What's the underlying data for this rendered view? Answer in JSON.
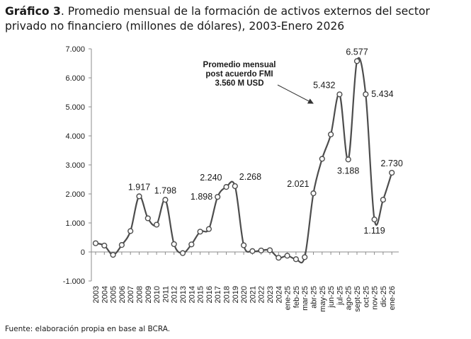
{
  "header": {
    "title_bold": "Gráfico 3",
    "title_rest": ". Promedio mensual de la formación de activos externos del sector privado no financiero (millones de dólares), 2003-Enero 2026"
  },
  "footer": {
    "source": "Fuente: elaboración propia en base al BCRA."
  },
  "colors": {
    "line": "#4d4d4d",
    "marker_fill": "#ffffff",
    "axis": "#8c8c8c"
  },
  "chart_data": {
    "type": "line",
    "title": "Promedio mensual de la formación de activos externos del sector privado no financiero (millones de dólares), 2003-Enero 2026",
    "xlabel": "",
    "ylabel": "",
    "ylim": [
      -1000,
      7000
    ],
    "yticks": [
      7000,
      6000,
      5000,
      4000,
      3000,
      2000,
      1000,
      0,
      -1000
    ],
    "ytick_labels": [
      "7.000",
      "6.000",
      "5.000",
      "4.000",
      "3.000",
      "2.000",
      "1.000",
      "0",
      "-1.000"
    ],
    "grid": false,
    "categories": [
      "2003",
      "2004",
      "2005",
      "2006",
      "2007",
      "2008",
      "2009",
      "2010",
      "2011",
      "2012",
      "2013",
      "2014",
      "2015",
      "2016",
      "2017",
      "2018",
      "2019",
      "2020",
      "2021",
      "2022",
      "2023",
      "2024",
      "ene-25",
      "feb-25",
      "mar-25",
      "abr-25",
      "may-25",
      "jun-25",
      "jul-25",
      "ago-25",
      "sept-25",
      "oct-25",
      "nov-25",
      "dic-25",
      "ene-26"
    ],
    "values": [
      300,
      220,
      -100,
      240,
      720,
      1917,
      1160,
      940,
      1798,
      270,
      -40,
      260,
      700,
      790,
      1898,
      2240,
      2268,
      230,
      30,
      50,
      60,
      -200,
      -130,
      -250,
      -180,
      2021,
      3210,
      4050,
      5432,
      3188,
      6577,
      5434,
      1119,
      1800,
      2730
    ],
    "data_labels": [
      {
        "index": 5,
        "text": "1.917",
        "pos": "above"
      },
      {
        "index": 8,
        "text": "1.798",
        "pos": "above"
      },
      {
        "index": 14,
        "text": "1.898",
        "pos": "left"
      },
      {
        "index": 15,
        "text": "2.240",
        "pos": "above-left"
      },
      {
        "index": 16,
        "text": "2.268",
        "pos": "above-right"
      },
      {
        "index": 25,
        "text": "2.021",
        "pos": "above-left"
      },
      {
        "index": 28,
        "text": "5.432",
        "pos": "above-left"
      },
      {
        "index": 29,
        "text": "3.188",
        "pos": "below"
      },
      {
        "index": 30,
        "text": "6.577",
        "pos": "above"
      },
      {
        "index": 31,
        "text": "5.434",
        "pos": "right"
      },
      {
        "index": 32,
        "text": "1.119",
        "pos": "below"
      },
      {
        "index": 34,
        "text": "2.730",
        "pos": "above"
      }
    ],
    "annotation": {
      "lines": [
        "Promedio mensual",
        "post acuerdo FMI",
        "3.560 M USD"
      ],
      "points_to_index": 26
    }
  }
}
